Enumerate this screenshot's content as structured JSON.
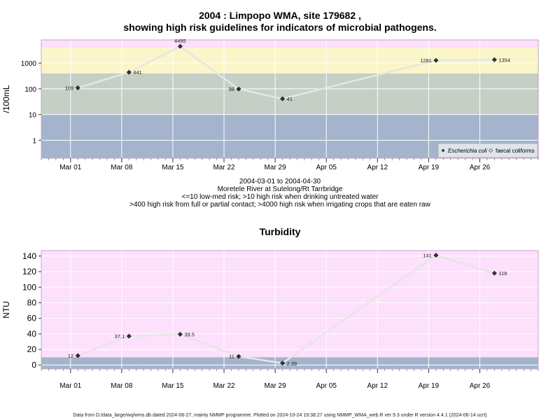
{
  "header": {
    "title_line1": "2004 : Limpopo WMA, site 179682 ,",
    "title_line2": "showing high risk guidelines for indicators of microbial pathogens."
  },
  "microbial": {
    "subtitle_lines": [
      "2004-03-01 to 2004-04-30",
      "Moretele River at Sutelong/Rt Tarrbridge",
      "<=10 low-med risk; >10 high risk when drinking untreated water",
      ">400 high risk from full or partial contact; >4000 high risk when irrigating crops that are eaten raw"
    ]
  },
  "turbidity": {
    "title": "Turbidity"
  },
  "footer": {
    "text": "Data from D:/data_large/wq/wms.db dated 2024-08-27, mainly NMMP programme. Plotted on 2024-10-24 19:38:27 using NMMP_WMA_web.R ver 9.3 under R version 4.4.1 (2024-06-14 ucrt)"
  },
  "colors": {
    "band_low": "#a3b4cc",
    "band_mid": "#c5cfc5",
    "band_high": "#fbf6c9",
    "band_top": "#fde0fb",
    "turbidity_bg": "#fde0fb",
    "turbidity_low": "#a3b4cc",
    "series_line": "#e5e5e5",
    "point": "#333333"
  },
  "chart_data": [
    {
      "type": "line",
      "title": "",
      "xlabel": "",
      "ylabel": "/100mL",
      "y_scale": "log10",
      "ylim": [
        0.2,
        8000
      ],
      "yticks": [
        1,
        10,
        100,
        1000
      ],
      "ytick_labels": [
        "1",
        "10",
        "100",
        "1000"
      ],
      "xlim": [
        "2004-02-26",
        "2004-05-04"
      ],
      "xticks": [
        "2004-03-01",
        "2004-03-08",
        "2004-03-15",
        "2004-03-22",
        "2004-03-29",
        "2004-04-05",
        "2004-04-12",
        "2004-04-19",
        "2004-04-26"
      ],
      "xtick_labels": [
        "Mar 01",
        "Mar 08",
        "Mar 15",
        "Mar 22",
        "Mar 29",
        "Apr 05",
        "Apr 12",
        "Apr 19",
        "Apr 26"
      ],
      "grid": true,
      "bands": [
        {
          "from": 0.2,
          "to": 10
        },
        {
          "from": 10,
          "to": 400
        },
        {
          "from": 400,
          "to": 4000
        },
        {
          "from": 4000,
          "to": 8000
        }
      ],
      "series": [
        {
          "name": "Escherichia coli",
          "x": [
            "2004-03-02",
            "2004-03-09",
            "2004-03-16",
            "2004-03-24",
            "2004-03-30",
            "2004-04-20",
            "2004-04-28"
          ],
          "values": [
            109,
            441,
            4495,
            98,
            41,
            1281,
            1354
          ],
          "labels": [
            "109",
            "441",
            "4495",
            "98",
            "41",
            "1281",
            "1354"
          ]
        }
      ],
      "legend": {
        "placement": "bottom-right",
        "entries": [
          "Escherichia coli",
          "faecal coliforms"
        ]
      }
    },
    {
      "type": "line",
      "title": "Turbidity",
      "xlabel": "",
      "ylabel": "NTU",
      "y_scale": "linear",
      "ylim": [
        -5,
        147
      ],
      "yticks": [
        0,
        20,
        40,
        60,
        80,
        100,
        120,
        140
      ],
      "ytick_labels": [
        "0",
        "20",
        "40",
        "60",
        "80",
        "100",
        "120",
        "140"
      ],
      "xlim": [
        "2004-02-26",
        "2004-05-04"
      ],
      "xticks": [
        "2004-03-01",
        "2004-03-08",
        "2004-03-15",
        "2004-03-22",
        "2004-03-29",
        "2004-04-05",
        "2004-04-12",
        "2004-04-19",
        "2004-04-26"
      ],
      "xtick_labels": [
        "Mar 01",
        "Mar 08",
        "Mar 15",
        "Mar 22",
        "Mar 29",
        "Apr 05",
        "Apr 12",
        "Apr 19",
        "Apr 26"
      ],
      "grid": true,
      "bands": [
        {
          "from": -5,
          "to": 10
        },
        {
          "from": 10,
          "to": 147
        }
      ],
      "series": [
        {
          "name": "",
          "x": [
            "2004-03-02",
            "2004-03-09",
            "2004-03-16",
            "2004-03-24",
            "2004-03-30",
            "2004-04-20",
            "2004-04-28"
          ],
          "values": [
            12,
            37.1,
            39.5,
            11,
            2.39,
            141,
            118
          ],
          "labels": [
            "12",
            "37.1",
            "39.5",
            "11",
            "2.39",
            "141",
            "118"
          ]
        }
      ]
    }
  ]
}
